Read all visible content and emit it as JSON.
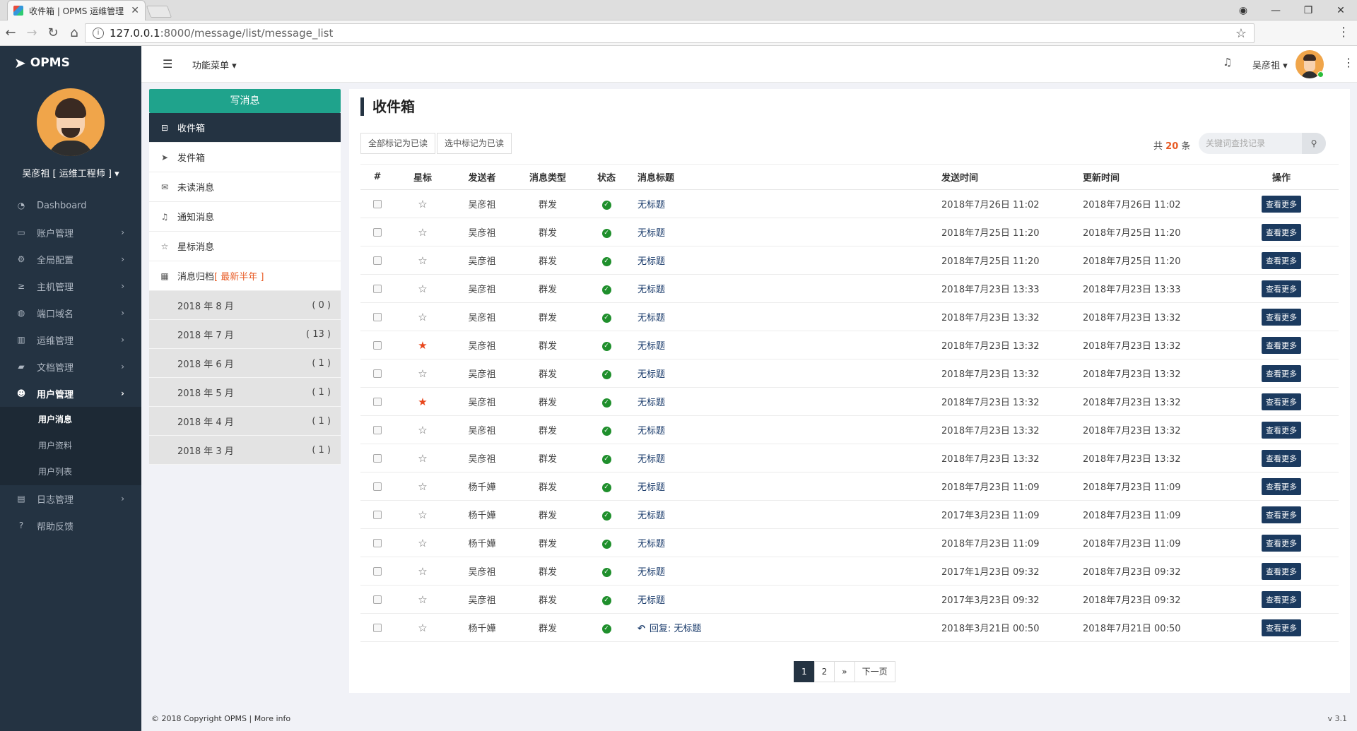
{
  "browser": {
    "tab_title": "收件箱 | OPMS 运维管理",
    "tab_close": "✕",
    "url_host": "127.0.0.1",
    "url_path": ":8000/message/list/message_list"
  },
  "sidebar": {
    "logo": "OPMS",
    "user": "吴彦祖 [ 运维工程师 ] ▾",
    "items": [
      {
        "label": "Dashboard",
        "icon": "dashboard-icon",
        "glyph": "◔"
      },
      {
        "label": "账户管理",
        "icon": "monitor-icon",
        "glyph": "▭"
      },
      {
        "label": "全局配置",
        "icon": "gear-icon",
        "glyph": "⚙"
      },
      {
        "label": "主机管理",
        "icon": "terminal-icon",
        "glyph": "≥"
      },
      {
        "label": "端口域名",
        "icon": "globe-icon",
        "glyph": "◍"
      },
      {
        "label": "运维管理",
        "icon": "chart-icon",
        "glyph": "▥"
      },
      {
        "label": "文档管理",
        "icon": "book-icon",
        "glyph": "▰"
      },
      {
        "label": "用户管理",
        "icon": "users-icon",
        "glyph": "☻"
      },
      {
        "label": "日志管理",
        "icon": "file-icon",
        "glyph": "▤"
      },
      {
        "label": "帮助反馈",
        "icon": "help-icon",
        "glyph": "?"
      }
    ],
    "submenu": [
      "用户消息",
      "用户资料",
      "用户列表"
    ]
  },
  "header": {
    "func_menu": "功能菜单 ▾",
    "user": "吴彦祖 ▾"
  },
  "mail": {
    "compose": "写消息",
    "folders": [
      {
        "label": "收件箱",
        "icon": "inbox-icon",
        "glyph": "⊟"
      },
      {
        "label": "发件箱",
        "icon": "send-icon",
        "glyph": "➤"
      },
      {
        "label": "未读消息",
        "icon": "envelope-icon",
        "glyph": "✉"
      },
      {
        "label": "通知消息",
        "icon": "bell-icon",
        "glyph": "♫"
      },
      {
        "label": "星标消息",
        "icon": "star-icon",
        "glyph": "☆"
      }
    ],
    "archive_label": "消息归档",
    "archive_hint": "[ 最新半年 ]",
    "archive": [
      {
        "month": "2018 年 8 月",
        "count": "( 0 )"
      },
      {
        "month": "2018 年 7 月",
        "count": "( 13 )"
      },
      {
        "month": "2018 年 6 月",
        "count": "( 1 )"
      },
      {
        "month": "2018 年 5 月",
        "count": "( 1 )"
      },
      {
        "month": "2018 年 4 月",
        "count": "( 1 )"
      },
      {
        "month": "2018 年 3 月",
        "count": "( 1 )"
      }
    ]
  },
  "main": {
    "title": "收件箱",
    "mark_all": "全部标记为已读",
    "mark_selected": "选中标记为已读",
    "total_prefix": "共",
    "total_count": "20",
    "total_suffix": "条",
    "search_placeholder": "关键词查找记录",
    "columns": [
      "#",
      "星标",
      "发送者",
      "消息类型",
      "状态",
      "消息标题",
      "发送时间",
      "更新时间",
      "操作"
    ],
    "more_label": "查看更多",
    "rows": [
      {
        "starred": false,
        "sender": "吴彦祖",
        "type": "群发",
        "title": "无标题",
        "reply": false,
        "sent": "2018年7月26日 11:02",
        "updated": "2018年7月26日 11:02"
      },
      {
        "starred": false,
        "sender": "吴彦祖",
        "type": "群发",
        "title": "无标题",
        "reply": false,
        "sent": "2018年7月25日 11:20",
        "updated": "2018年7月25日 11:20"
      },
      {
        "starred": false,
        "sender": "吴彦祖",
        "type": "群发",
        "title": "无标题",
        "reply": false,
        "sent": "2018年7月25日 11:20",
        "updated": "2018年7月25日 11:20"
      },
      {
        "starred": false,
        "sender": "吴彦祖",
        "type": "群发",
        "title": "无标题",
        "reply": false,
        "sent": "2018年7月23日 13:33",
        "updated": "2018年7月23日 13:33"
      },
      {
        "starred": false,
        "sender": "吴彦祖",
        "type": "群发",
        "title": "无标题",
        "reply": false,
        "sent": "2018年7月23日 13:32",
        "updated": "2018年7月23日 13:32"
      },
      {
        "starred": true,
        "sender": "吴彦祖",
        "type": "群发",
        "title": "无标题",
        "reply": false,
        "sent": "2018年7月23日 13:32",
        "updated": "2018年7月23日 13:32"
      },
      {
        "starred": false,
        "sender": "吴彦祖",
        "type": "群发",
        "title": "无标题",
        "reply": false,
        "sent": "2018年7月23日 13:32",
        "updated": "2018年7月23日 13:32"
      },
      {
        "starred": true,
        "sender": "吴彦祖",
        "type": "群发",
        "title": "无标题",
        "reply": false,
        "sent": "2018年7月23日 13:32",
        "updated": "2018年7月23日 13:32"
      },
      {
        "starred": false,
        "sender": "吴彦祖",
        "type": "群发",
        "title": "无标题",
        "reply": false,
        "sent": "2018年7月23日 13:32",
        "updated": "2018年7月23日 13:32"
      },
      {
        "starred": false,
        "sender": "吴彦祖",
        "type": "群发",
        "title": "无标题",
        "reply": false,
        "sent": "2018年7月23日 13:32",
        "updated": "2018年7月23日 13:32"
      },
      {
        "starred": false,
        "sender": "杨千嬅",
        "type": "群发",
        "title": "无标题",
        "reply": false,
        "sent": "2018年7月23日 11:09",
        "updated": "2018年7月23日 11:09"
      },
      {
        "starred": false,
        "sender": "杨千嬅",
        "type": "群发",
        "title": "无标题",
        "reply": false,
        "sent": "2017年3月23日 11:09",
        "updated": "2018年7月23日 11:09"
      },
      {
        "starred": false,
        "sender": "杨千嬅",
        "type": "群发",
        "title": "无标题",
        "reply": false,
        "sent": "2018年7月23日 11:09",
        "updated": "2018年7月23日 11:09"
      },
      {
        "starred": false,
        "sender": "吴彦祖",
        "type": "群发",
        "title": "无标题",
        "reply": false,
        "sent": "2017年1月23日 09:32",
        "updated": "2018年7月23日 09:32"
      },
      {
        "starred": false,
        "sender": "吴彦祖",
        "type": "群发",
        "title": "无标题",
        "reply": false,
        "sent": "2017年3月23日 09:32",
        "updated": "2018年7月23日 09:32"
      },
      {
        "starred": false,
        "sender": "杨千嬅",
        "type": "群发",
        "title": "回复:  无标题",
        "reply": true,
        "sent": "2018年3月21日 00:50",
        "updated": "2018年7月21日 00:50"
      }
    ],
    "pages": [
      "1",
      "2",
      "»",
      "下一页"
    ]
  },
  "footer": {
    "copyright": "© 2018 Copyright OPMS | More info",
    "version": "v 3.1"
  },
  "colors": {
    "sidebar": "#243342",
    "compose": "#1fa38c",
    "star": "#e8461c",
    "status_ok": "#1f8f2c",
    "button": "#1b3a5f"
  }
}
